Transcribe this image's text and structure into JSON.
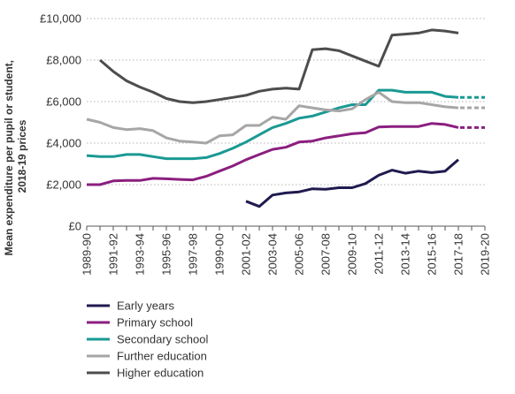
{
  "chart_data": {
    "type": "line",
    "ylabel": [
      "Mean expenditure per pupil or student,",
      "2018-19 prices"
    ],
    "ylim": [
      0,
      10000
    ],
    "yticks": [
      {
        "value": 0,
        "label": "£0"
      },
      {
        "value": 2000,
        "label": "£2,000"
      },
      {
        "value": 4000,
        "label": "£4,000"
      },
      {
        "value": 6000,
        "label": "£6,000"
      },
      {
        "value": 8000,
        "label": "£8,000"
      },
      {
        "value": 10000,
        "label": "£10,000"
      }
    ],
    "x": [
      "1989-90",
      "1990-91",
      "1991-92",
      "1992-93",
      "1993-94",
      "1994-95",
      "1995-96",
      "1996-97",
      "1997-98",
      "1998-99",
      "1999-00",
      "2000-01",
      "2001-02",
      "2002-03",
      "2003-04",
      "2004-05",
      "2005-06",
      "2006-07",
      "2007-08",
      "2008-09",
      "2009-10",
      "2010-11",
      "2011-12",
      "2012-13",
      "2013-14",
      "2014-15",
      "2015-16",
      "2016-17",
      "2017-18",
      "2018-19",
      "2019-20"
    ],
    "xtick_labels": [
      "1989-90",
      "1991-92",
      "1993-94",
      "1995-96",
      "1997-98",
      "1999-00",
      "2001-02",
      "2003-04",
      "2005-06",
      "2007-08",
      "2009-10",
      "2011-12",
      "2013-14",
      "2015-16",
      "2017-18",
      "2019-20"
    ],
    "grid": "horizontal-dotted",
    "legend_position": "bottom-left",
    "series": [
      {
        "name": "Early years",
        "color": "#1f1a4e",
        "values": [
          null,
          null,
          null,
          null,
          null,
          null,
          null,
          null,
          null,
          null,
          null,
          null,
          1200,
          950,
          1500,
          1600,
          1650,
          1800,
          1780,
          1850,
          1850,
          2050,
          2450,
          2700,
          2550,
          2650,
          2580,
          2650,
          3200,
          null,
          null
        ],
        "projection": null
      },
      {
        "name": "Primary school",
        "color": "#8b1f7f",
        "values": [
          2000,
          2000,
          2180,
          2200,
          2200,
          2300,
          2280,
          2250,
          2230,
          2400,
          2650,
          2900,
          3200,
          3450,
          3700,
          3800,
          4050,
          4100,
          4250,
          4350,
          4450,
          4500,
          4780,
          4800,
          4800,
          4800,
          4950,
          4900,
          4750,
          null,
          null
        ],
        "projection": 4750
      },
      {
        "name": "Secondary school",
        "color": "#1a9994",
        "values": [
          3400,
          3350,
          3350,
          3450,
          3450,
          3350,
          3250,
          3250,
          3250,
          3300,
          3500,
          3750,
          4050,
          4400,
          4750,
          4950,
          5200,
          5300,
          5500,
          5700,
          5850,
          5850,
          6550,
          6550,
          6450,
          6450,
          6450,
          6250,
          6200,
          null,
          null
        ],
        "projection": 6200
      },
      {
        "name": "Further education",
        "color": "#a6a6a6",
        "values": [
          5150,
          5000,
          4750,
          4650,
          4700,
          4600,
          4250,
          4100,
          4050,
          4000,
          4350,
          4400,
          4850,
          4850,
          5250,
          5150,
          5800,
          5700,
          5600,
          5550,
          5650,
          6100,
          6450,
          6000,
          5950,
          5950,
          5850,
          5750,
          5700,
          null,
          null
        ],
        "projection": 5700
      },
      {
        "name": "Higher education",
        "color": "#4d4d4d",
        "values": [
          null,
          8000,
          7450,
          7000,
          6700,
          6450,
          6150,
          6000,
          5950,
          6000,
          6100,
          6200,
          6300,
          6500,
          6600,
          6650,
          6600,
          8500,
          8550,
          8450,
          8200,
          7950,
          7700,
          9200,
          9250,
          9300,
          9450,
          9400,
          9300,
          null,
          null
        ],
        "projection": null
      }
    ]
  }
}
